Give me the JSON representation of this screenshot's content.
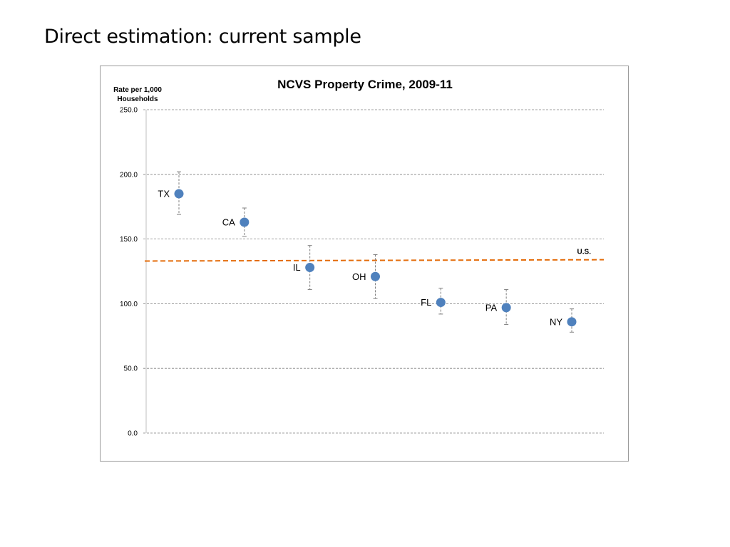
{
  "slide": {
    "title": "Direct estimation: current sample"
  },
  "chart_data": {
    "type": "scatter",
    "title": "NCVS Property Crime, 2009-11",
    "ylabel": "Rate per 1,000 Households",
    "ylabel_lines": [
      "Rate per 1,000",
      "Households"
    ],
    "xlabel": "",
    "ylim": [
      0,
      250
    ],
    "yticks": [
      0,
      50,
      100,
      150,
      200,
      250
    ],
    "ytick_labels": [
      "0.0",
      "50.0",
      "100.0",
      "150.0",
      "200.0",
      "250.0"
    ],
    "grid": true,
    "series": [
      {
        "points": [
          {
            "label": "TX",
            "y": 185,
            "lower": 169,
            "upper": 202
          },
          {
            "label": "CA",
            "y": 163,
            "lower": 152,
            "upper": 174
          },
          {
            "label": "IL",
            "y": 128,
            "lower": 111,
            "upper": 145
          },
          {
            "label": "OH",
            "y": 121,
            "lower": 104,
            "upper": 138
          },
          {
            "label": "FL",
            "y": 101,
            "lower": 92,
            "upper": 112
          },
          {
            "label": "PA",
            "y": 97,
            "lower": 84,
            "upper": 111
          },
          {
            "label": "NY",
            "y": 86,
            "lower": 78,
            "upper": 96
          }
        ]
      }
    ],
    "reference_line": {
      "label": "U.S.",
      "y_start": 133,
      "y_end": 134,
      "style": "dashed"
    },
    "colors": {
      "points": "#4f81bd",
      "reference": "#e46c0a",
      "errorbars": "#7f7f7f",
      "grid": "#808080"
    }
  }
}
